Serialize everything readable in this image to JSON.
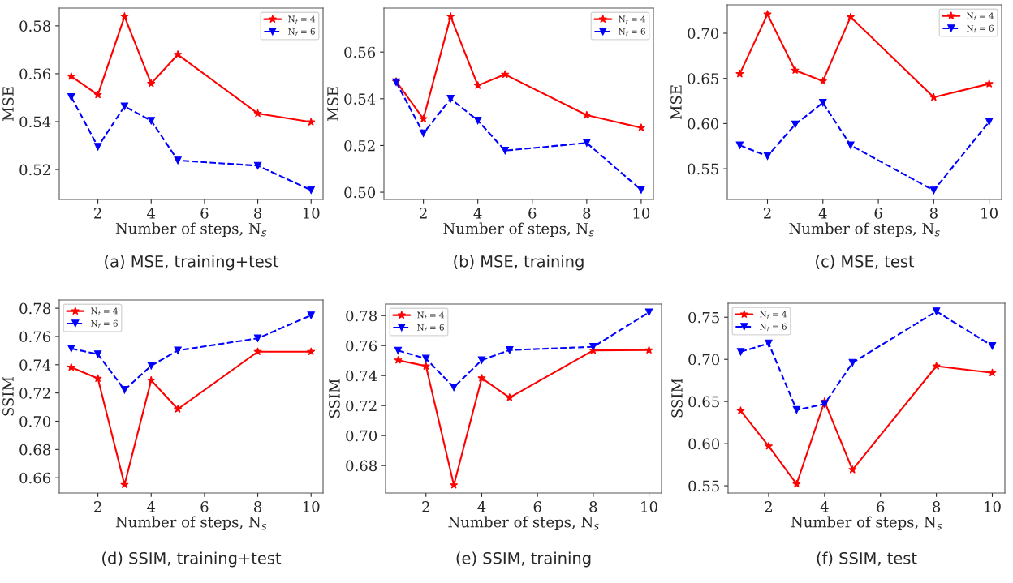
{
  "chart_data": [
    {
      "type": "line",
      "title": "(a) MSE, training+test",
      "xlabel": "Number of steps, N$_{s}$",
      "ylabel": "MSE",
      "x": [
        1,
        2,
        3,
        4,
        5,
        8,
        10
      ],
      "xlim": [
        0.55,
        10.45
      ],
      "xticks": [
        2,
        4,
        6,
        8,
        10
      ],
      "ylim": [
        0.5075,
        0.5874
      ],
      "yticks": [
        0.52,
        0.54,
        0.56,
        0.58
      ],
      "grid": false,
      "legend": "top right",
      "series": [
        {
          "name": "N$_{f}$ = 4",
          "color": "#ff0000",
          "marker": "star",
          "line_style": "solid",
          "values": [
            0.5589,
            0.5512,
            0.5839,
            0.5559,
            0.568,
            0.5434,
            0.5398
          ]
        },
        {
          "name": "N$_{f}$ = 6",
          "color": "#0000ff",
          "marker": "triangle",
          "line_style": "dashed",
          "values": [
            0.5503,
            0.5295,
            0.5464,
            0.5404,
            0.5238,
            0.5216,
            0.5114
          ]
        }
      ]
    },
    {
      "type": "line",
      "title": "(b) MSE, training",
      "xlabel": "Number of steps, N$_{s}$",
      "ylabel": "MSE",
      "x": [
        1,
        2,
        3,
        4,
        5,
        8,
        10
      ],
      "xlim": [
        0.55,
        10.45
      ],
      "xticks": [
        2,
        4,
        6,
        8,
        10
      ],
      "ylim": [
        0.4969,
        0.5788
      ],
      "yticks": [
        {
          "value": 0.5,
          "label": "0.50"
        },
        0.52,
        0.54,
        0.56
      ],
      "grid": false,
      "legend": "top right",
      "series": [
        {
          "name": "N$_{f}$ = 4",
          "color": "#ff0000",
          "marker": "star",
          "line_style": "solid",
          "values": [
            0.5474,
            0.5314,
            0.5752,
            0.5457,
            0.5504,
            0.533,
            0.5276
          ]
        },
        {
          "name": "N$_{f}$ = 6",
          "color": "#0000ff",
          "marker": "triangle",
          "line_style": "dashed",
          "values": [
            0.5471,
            0.5252,
            0.54,
            0.5307,
            0.5178,
            0.5211,
            0.501
          ]
        }
      ]
    },
    {
      "type": "line",
      "title": "(c) MSE, test",
      "xlabel": "Number of steps, N$_{s}$",
      "ylabel": "MSE",
      "x": [
        1,
        2,
        3,
        4,
        5,
        8,
        10
      ],
      "xlim": [
        0.55,
        10.45
      ],
      "xticks": [
        2,
        4,
        6,
        8,
        10
      ],
      "ylim": [
        0.516,
        0.7314
      ],
      "yticks": [
        0.55,
        {
          "value": 0.6,
          "label": "0.60"
        },
        0.65,
        {
          "value": 0.7,
          "label": "0.70"
        }
      ],
      "grid": false,
      "legend": "top right",
      "series": [
        {
          "name": "N$_{f}$ = 4",
          "color": "#ff0000",
          "marker": "star",
          "line_style": "solid",
          "values": [
            0.655,
            0.721,
            0.659,
            0.647,
            0.718,
            0.629,
            0.644
          ]
        },
        {
          "name": "N$_{f}$ = 6",
          "color": "#0000ff",
          "marker": "triangle",
          "line_style": "dashed",
          "values": [
            0.576,
            0.564,
            0.599,
            0.623,
            0.576,
            0.526,
            0.602
          ]
        }
      ]
    },
    {
      "type": "line",
      "title": "(d) SSIM, training+test",
      "xlabel": "Number of steps, N$_{s}$",
      "ylabel": "SSIM",
      "x": [
        1,
        2,
        3,
        4,
        5,
        8,
        10
      ],
      "xlim": [
        0.55,
        10.45
      ],
      "xticks": [
        2,
        4,
        6,
        8,
        10
      ],
      "ylim": [
        0.6492,
        0.7858
      ],
      "yticks": [
        0.66,
        0.68,
        {
          "value": 0.7,
          "label": "0.70"
        },
        0.72,
        0.74,
        0.76,
        0.78
      ],
      "grid": false,
      "legend": "top left",
      "series": [
        {
          "name": "N$_{f}$ = 4",
          "color": "#ff0000",
          "marker": "star",
          "line_style": "solid",
          "values": [
            0.7382,
            0.7303,
            0.6551,
            0.729,
            0.7086,
            0.7492,
            0.7492
          ]
        },
        {
          "name": "N$_{f}$ = 6",
          "color": "#0000ff",
          "marker": "triangle",
          "line_style": "dashed",
          "values": [
            0.7515,
            0.7474,
            0.7222,
            0.7393,
            0.7501,
            0.7587,
            0.775
          ]
        }
      ]
    },
    {
      "type": "line",
      "title": "(e) SSIM, training",
      "xlabel": "Number of steps, N$_{s}$",
      "ylabel": "SSIM",
      "x": [
        1,
        2,
        3,
        4,
        5,
        8,
        10
      ],
      "xlim": [
        0.55,
        10.45
      ],
      "xticks": [
        2,
        4,
        6,
        8,
        10
      ],
      "ylim": [
        0.6617,
        0.7877
      ],
      "yticks": [
        0.68,
        {
          "value": 0.7,
          "label": "0.70"
        },
        0.72,
        0.74,
        0.76,
        0.78
      ],
      "grid": false,
      "legend": "top left",
      "series": [
        {
          "name": "N$_{f}$ = 4",
          "color": "#ff0000",
          "marker": "star",
          "line_style": "solid",
          "values": [
            0.7503,
            0.7463,
            0.667,
            0.7383,
            0.7253,
            0.7568,
            0.757
          ]
        },
        {
          "name": "N$_{f}$ = 6",
          "color": "#0000ff",
          "marker": "triangle",
          "line_style": "dashed",
          "values": [
            0.7567,
            0.7513,
            0.7322,
            0.7503,
            0.757,
            0.7592,
            0.7822
          ]
        }
      ]
    },
    {
      "type": "line",
      "title": "(f) SSIM, test",
      "xlabel": "Number of steps, N$_{s}$",
      "ylabel": "SSIM",
      "x": [
        1,
        2,
        3,
        4,
        5,
        8,
        10
      ],
      "xlim": [
        0.55,
        10.45
      ],
      "xticks": [
        2,
        4,
        6,
        8,
        10
      ],
      "ylim": [
        0.5414,
        0.7666
      ],
      "yticks": [
        0.55,
        {
          "value": 0.6,
          "label": "0.60"
        },
        0.65,
        {
          "value": 0.7,
          "label": "0.70"
        },
        0.75
      ],
      "grid": false,
      "legend": "top left",
      "series": [
        {
          "name": "N$_{f}$ = 4",
          "color": "#ff0000",
          "marker": "star",
          "line_style": "solid",
          "values": [
            0.639,
            0.597,
            0.552,
            0.65,
            0.569,
            0.692,
            0.684
          ]
        },
        {
          "name": "N$_{f}$ = 6",
          "color": "#0000ff",
          "marker": "triangle",
          "line_style": "dashed",
          "values": [
            0.709,
            0.719,
            0.64,
            0.647,
            0.696,
            0.757,
            0.716
          ]
        }
      ]
    }
  ]
}
